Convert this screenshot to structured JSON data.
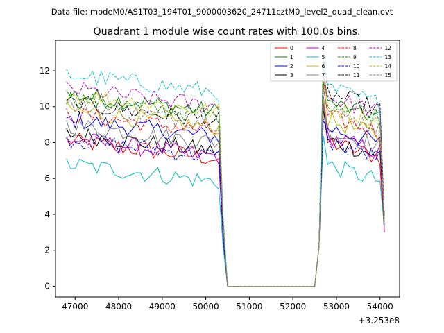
{
  "chart_data": {
    "type": "line",
    "suptitle": "Data file: modeM0/AS1T03_194T01_9000003620_24711cztM0_level2_quad_clean.evt",
    "title": "Quadrant 1 module wise count rates with 100.0s bins.",
    "xlabel": "",
    "ylabel": "",
    "x_offset_label": "+3.253e8",
    "xlim": [
      46550,
      54450
    ],
    "ylim": [
      -0.6,
      13.7
    ],
    "x_ticks": [
      47000,
      48000,
      49000,
      50000,
      51000,
      52000,
      53000,
      54000
    ],
    "y_ticks": [
      0,
      2,
      4,
      6,
      8,
      10,
      12
    ],
    "series": [
      {
        "name": "0",
        "color": "#ff0000",
        "dash": "solid",
        "base": 7.5,
        "post": 7.6
      },
      {
        "name": "1",
        "color": "#008000",
        "dash": "solid",
        "base": 10.1,
        "post": 9.8
      },
      {
        "name": "2",
        "color": "#0000ff",
        "dash": "solid",
        "base": 8.7,
        "post": 8.4
      },
      {
        "name": "3",
        "color": "#000000",
        "dash": "solid",
        "base": 7.9,
        "post": 7.7
      },
      {
        "name": "4",
        "color": "#bf00bf",
        "dash": "solid",
        "base": 7.6,
        "post": 7.9
      },
      {
        "name": "5",
        "color": "#00bfbf",
        "dash": "solid",
        "base": 6.2,
        "post": 6.3
      },
      {
        "name": "6",
        "color": "#bfbf00",
        "dash": "solid",
        "base": 9.2,
        "post": 8.8
      },
      {
        "name": "7",
        "color": "#808080",
        "dash": "solid",
        "base": 8.4,
        "post": 8.2
      },
      {
        "name": "8",
        "color": "#ff0000",
        "dash": "dashed",
        "base": 9.0,
        "post": 9.0
      },
      {
        "name": "9",
        "color": "#008000",
        "dash": "dashed",
        "base": 9.9,
        "post": 9.9
      },
      {
        "name": "10",
        "color": "#0000ff",
        "dash": "dashed",
        "base": 7.6,
        "post": 7.6
      },
      {
        "name": "11",
        "color": "#000000",
        "dash": "dashed",
        "base": 9.6,
        "post": 10.3
      },
      {
        "name": "12",
        "color": "#bf00bf",
        "dash": "dashed",
        "base": 10.4,
        "post": 10.1
      },
      {
        "name": "13",
        "color": "#00bfbf",
        "dash": "dashed",
        "base": 11.2,
        "post": 10.6
      },
      {
        "name": "14",
        "color": "#bfbf00",
        "dash": "dashed",
        "base": 10.1,
        "post": 9.6
      },
      {
        "name": "15",
        "color": "#808080",
        "dash": "dashed",
        "base": 9.5,
        "post": 9.3
      }
    ],
    "time_segments": {
      "active_1": [
        46800,
        50300
      ],
      "zero": [
        50500,
        52500
      ],
      "active_2": [
        52700,
        54100
      ],
      "bin": 100
    },
    "legend_position": "top-right"
  }
}
